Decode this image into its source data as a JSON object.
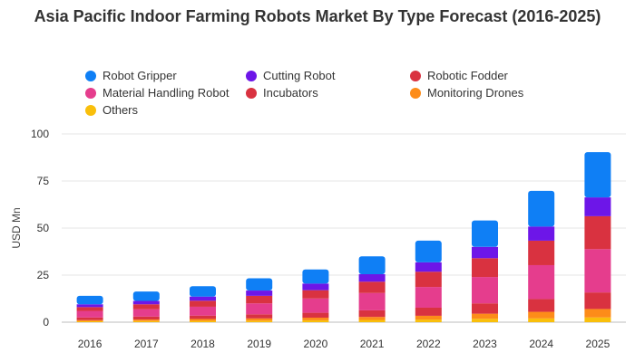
{
  "chart_data": {
    "type": "bar",
    "stacked": true,
    "title": "Asia Pacific Indoor Farming Robots Market By Type Forecast (2016-2025)",
    "xlabel": "",
    "ylabel": "USD Mn",
    "ylim": [
      0,
      100
    ],
    "yticks": [
      0,
      25,
      50,
      75,
      100
    ],
    "grid": "horizontal",
    "legend_position": "top",
    "categories": [
      "2016",
      "2017",
      "2018",
      "2019",
      "2020",
      "2021",
      "2022",
      "2023",
      "2024",
      "2025"
    ],
    "series": [
      {
        "name": "Others",
        "color": "#f9bf0b",
        "values": [
          0.5,
          0.6,
          0.7,
          0.8,
          1.0,
          1.2,
          1.4,
          1.8,
          2.0,
          2.5
        ]
      },
      {
        "name": "Monitoring Drones",
        "color": "#fd8c19",
        "values": [
          0.6,
          0.8,
          1.0,
          1.2,
          1.4,
          1.6,
          2.0,
          2.7,
          3.5,
          4.5
        ]
      },
      {
        "name": "Incubators",
        "color": "#d93240",
        "values": [
          1.4,
          1.6,
          1.8,
          2.2,
          2.6,
          3.5,
          4.3,
          5.5,
          6.8,
          8.8
        ]
      },
      {
        "name": "Material Handling Robot",
        "color": "#e53d8d",
        "values": [
          3.5,
          3.9,
          4.7,
          5.8,
          7.6,
          9.2,
          11.0,
          14.0,
          18.0,
          23.0
        ]
      },
      {
        "name": "Robotic Fodder",
        "color": "#d93240",
        "values": [
          2.0,
          2.6,
          3.2,
          4.0,
          4.4,
          6.0,
          8.1,
          10.0,
          13.0,
          17.5
        ]
      },
      {
        "name": "Cutting Robot",
        "color": "#6d16e8",
        "values": [
          1.5,
          1.8,
          2.2,
          2.8,
          3.5,
          4.0,
          5.0,
          6.0,
          7.5,
          10.0
        ]
      },
      {
        "name": "Robot Gripper",
        "color": "#0f7ff5",
        "values": [
          4.5,
          5.0,
          5.5,
          6.5,
          7.5,
          9.5,
          11.5,
          14.0,
          19.0,
          24.0
        ]
      }
    ],
    "legend_order": [
      "Robot Gripper",
      "Cutting Robot",
      "Robotic Fodder",
      "Material Handling Robot",
      "Incubators",
      "Monitoring Drones",
      "Others"
    ]
  }
}
